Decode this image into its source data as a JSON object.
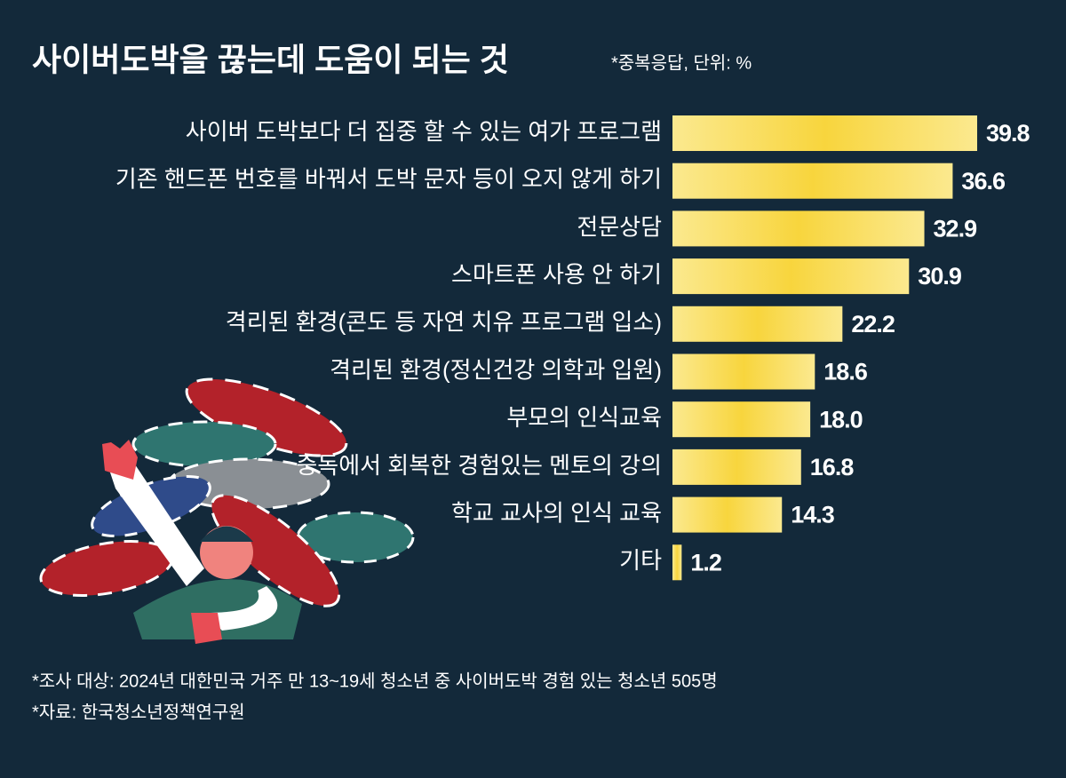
{
  "chart_data": {
    "type": "bar",
    "orientation": "horizontal",
    "title": "사이버도박을 끊는데 도움이 되는 것",
    "subtitle": "*중복응답, 단위: %",
    "categories": [
      "사이버 도박보다 더 집중 할 수 있는 여가 프로그램",
      "기존 핸드폰 번호를  바꿔서 도박 문자 등이 오지 않게 하기",
      "전문상담",
      "스마트폰 사용 안 하기",
      "격리된 환경(콘도 등 자연 치유 프로그램 입소)",
      "격리된 환경(정신건강 의학과 입원)",
      "부모의 인식교육",
      "중독에서 회복한 경험있는 멘토의 강의",
      "학교 교사의 인식 교육",
      "기타"
    ],
    "values": [
      39.8,
      36.6,
      32.9,
      30.9,
      22.2,
      18.6,
      18.0,
      16.8,
      14.3,
      1.2
    ],
    "value_labels": [
      "39.8",
      "36.6",
      "32.9",
      "30.9",
      "22.2",
      "18.6",
      "18.0",
      "16.8",
      "14.3",
      "1.2"
    ],
    "color": "#f8dc55",
    "notes": [
      "*조사 대상: 2024년 대한민국 거주 만 13~19세 청소년 중 사이버도박 경험 있는 청소년 505명",
      "*자료: 한국청소년정책연구원"
    ]
  }
}
